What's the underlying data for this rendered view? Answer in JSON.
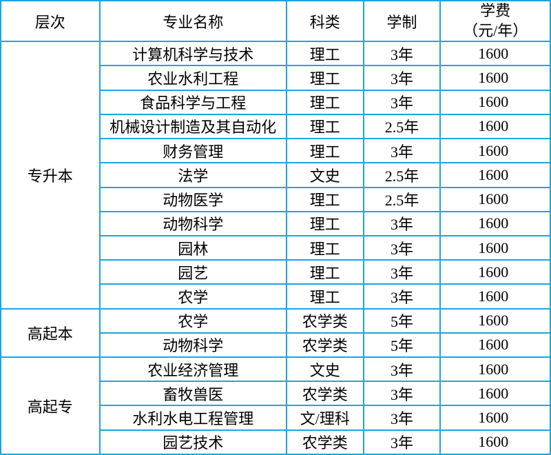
{
  "headers": {
    "level": "层次",
    "major": "专业名称",
    "category": "科类",
    "duration": "学制",
    "fee_line1": "学费",
    "fee_line2": "（元/年）"
  },
  "groups": [
    {
      "level": "专升本",
      "rows": [
        {
          "major": "计算机科学与技术",
          "category": "理工",
          "duration": "3年",
          "fee": "1600"
        },
        {
          "major": "农业水利工程",
          "category": "理工",
          "duration": "3年",
          "fee": "1600"
        },
        {
          "major": "食品科学与工程",
          "category": "理工",
          "duration": "3年",
          "fee": "1600"
        },
        {
          "major": "机械设计制造及其自动化",
          "category": "理工",
          "duration": "2.5年",
          "fee": "1600"
        },
        {
          "major": "财务管理",
          "category": "理工",
          "duration": "3年",
          "fee": "1600"
        },
        {
          "major": "法学",
          "category": "文史",
          "duration": "2.5年",
          "fee": "1600"
        },
        {
          "major": "动物医学",
          "category": "理工",
          "duration": "2.5年",
          "fee": "1600"
        },
        {
          "major": "动物科学",
          "category": "理工",
          "duration": "3年",
          "fee": "1600"
        },
        {
          "major": "园林",
          "category": "理工",
          "duration": "3年",
          "fee": "1600"
        },
        {
          "major": "园艺",
          "category": "理工",
          "duration": "3年",
          "fee": "1600"
        },
        {
          "major": "农学",
          "category": "理工",
          "duration": "3年",
          "fee": "1600"
        }
      ]
    },
    {
      "level": "高起本",
      "rows": [
        {
          "major": "农学",
          "category": "农学类",
          "duration": "5年",
          "fee": "1600"
        },
        {
          "major": "动物科学",
          "category": "农学类",
          "duration": "5年",
          "fee": "1600"
        }
      ]
    },
    {
      "level": "高起专",
      "rows": [
        {
          "major": "农业经济管理",
          "category": "文史",
          "duration": "3年",
          "fee": "1600"
        },
        {
          "major": "畜牧兽医",
          "category": "农学类",
          "duration": "3年",
          "fee": "1600"
        },
        {
          "major": "水利水电工程管理",
          "category": "文/理科",
          "duration": "3年",
          "fee": "1600"
        },
        {
          "major": "园艺技术",
          "category": "农学类",
          "duration": "3年",
          "fee": "1600"
        }
      ]
    }
  ],
  "style": {
    "border_color": "#1aa5e0",
    "text_color": "#000000",
    "background_color": "#ffffff",
    "font_size": 22,
    "border_width": 2
  }
}
